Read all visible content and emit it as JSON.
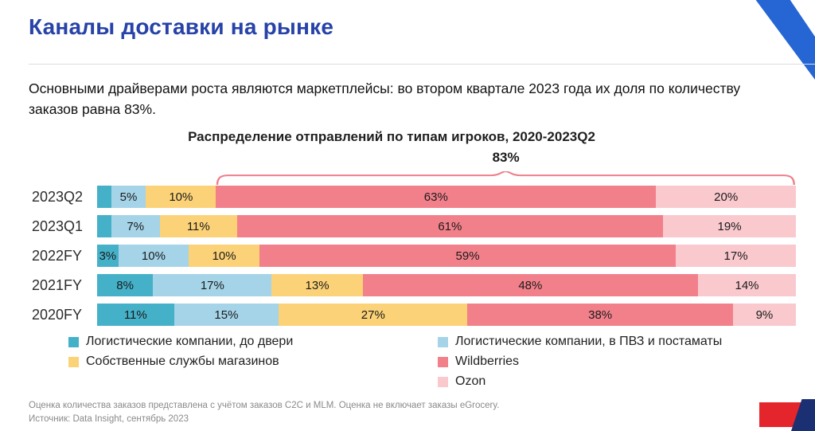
{
  "page": {
    "title": "Каналы доставки на рынке",
    "intro": "Основными драйверами роста являются маркетплейсы: во втором квартале 2023 года их доля по количеству заказов равна 83%.",
    "footnote1": "Оценка количества заказов представлена с учётом заказов C2C и MLM. Оценка не включает заказы eGrocery.",
    "footnote2": "Источник: Data Insight, сентябрь 2023"
  },
  "colors": {
    "title_blue": "#2742A8",
    "deco_top_right_blue": "#2566D4",
    "deco_red": "#E4252B",
    "deco_navy": "#1B2F73",
    "bracket": "#EE7F89"
  },
  "chart_data": {
    "type": "bar",
    "orientation": "horizontal",
    "stacked": true,
    "title": "Распределение отправлений по типам игроков, 2020-2023Q2",
    "annotation": {
      "label": "83%",
      "spans_series": [
        "Wildberries",
        "Ozon"
      ],
      "category": "2023Q2"
    },
    "categories": [
      "2023Q2",
      "2023Q1",
      "2022FY",
      "2021FY",
      "2020FY"
    ],
    "xlim": [
      0,
      100
    ],
    "value_suffix": "%",
    "min_label_value": 3,
    "series": [
      {
        "name": "Логистические компании, до двери",
        "color": "#45B1C9",
        "values": [
          2,
          2,
          3,
          8,
          11
        ]
      },
      {
        "name": "Логистические компании, в ПВЗ и постаматы",
        "color": "#A5D4E8",
        "values": [
          5,
          7,
          10,
          17,
          15
        ]
      },
      {
        "name": "Собственные службы магазинов",
        "color": "#FBD277",
        "values": [
          10,
          11,
          10,
          13,
          27
        ]
      },
      {
        "name": "Wildberries",
        "color": "#F2808A",
        "values": [
          63,
          61,
          59,
          48,
          38
        ]
      },
      {
        "name": "Ozon",
        "color": "#F9C9CE",
        "values": [
          20,
          19,
          17,
          14,
          9
        ]
      }
    ],
    "legend_columns": [
      [
        0,
        2
      ],
      [
        1,
        3,
        4
      ]
    ],
    "legend_position": "bottom"
  }
}
